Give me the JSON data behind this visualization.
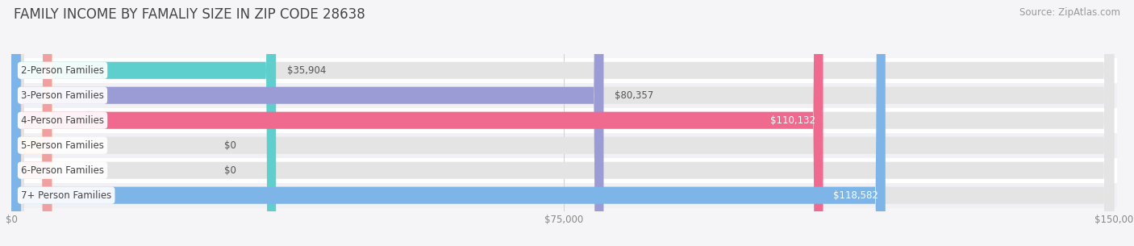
{
  "title": "FAMILY INCOME BY FAMALIY SIZE IN ZIP CODE 28638",
  "source": "Source: ZipAtlas.com",
  "categories": [
    "2-Person Families",
    "3-Person Families",
    "4-Person Families",
    "5-Person Families",
    "6-Person Families",
    "7+ Person Families"
  ],
  "values": [
    35904,
    80357,
    110132,
    0,
    0,
    118582
  ],
  "labels": [
    "$35,904",
    "$80,357",
    "$110,132",
    "$0",
    "$0",
    "$118,582"
  ],
  "bar_colors": [
    "#5ECFCC",
    "#9B9BD6",
    "#F06A8F",
    "#F5C992",
    "#F0A0A0",
    "#7EB5E8"
  ],
  "track_color": "#E4E4E4",
  "row_colors": [
    "#FFFFFF",
    "#F0F0F5"
  ],
  "xlim": [
    0,
    150000
  ],
  "xticks": [
    0,
    75000,
    150000
  ],
  "xtick_labels": [
    "$0",
    "$75,000",
    "$150,000"
  ],
  "title_fontsize": 12,
  "source_fontsize": 8.5,
  "label_fontsize": 8.5,
  "category_fontsize": 8.5,
  "background_color": "#F5F5F8"
}
